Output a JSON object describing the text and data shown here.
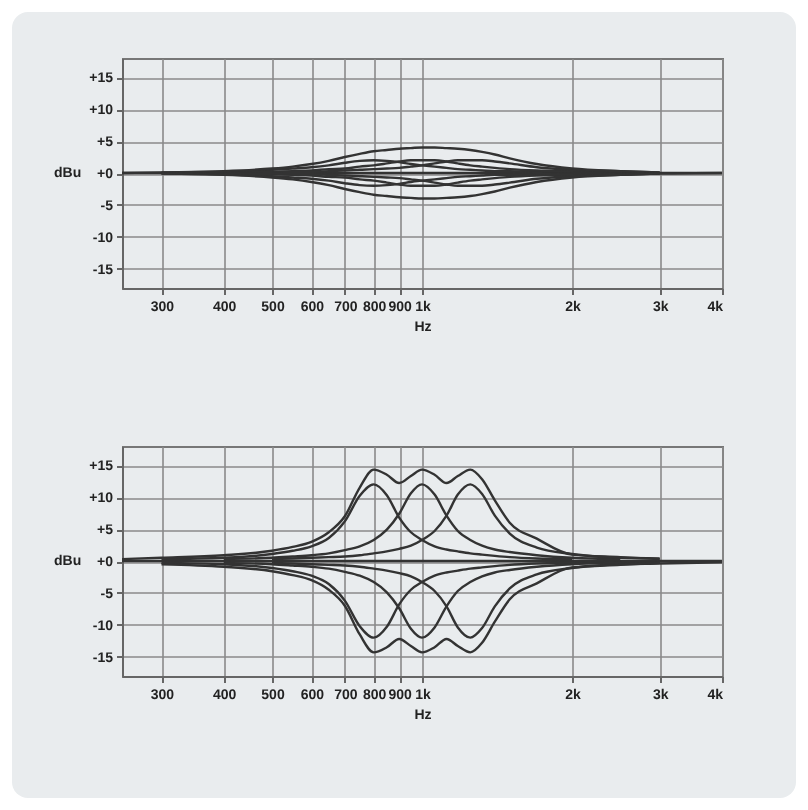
{
  "chart_data": [
    {
      "type": "line",
      "xlabel": "Hz",
      "ylabel": "dBu",
      "log": "x",
      "grid": true,
      "xlim": [
        250,
        4000
      ],
      "ylim": [
        -18,
        18
      ],
      "xticks": [
        {
          "value": 300,
          "label": "300"
        },
        {
          "value": 400,
          "label": "400"
        },
        {
          "value": 500,
          "label": "500"
        },
        {
          "value": 600,
          "label": "600"
        },
        {
          "value": 700,
          "label": "700"
        },
        {
          "value": 800,
          "label": "800"
        },
        {
          "value": 900,
          "label": "900"
        },
        {
          "value": 1000,
          "label": "1k"
        },
        {
          "value": 2000,
          "label": "2k"
        },
        {
          "value": 3000,
          "label": "3k"
        },
        {
          "value": 4000,
          "label": "4k"
        }
      ],
      "yticks": [
        {
          "value": 15,
          "label": "+15"
        },
        {
          "value": 10,
          "label": "+10"
        },
        {
          "value": 5,
          "label": "+5"
        },
        {
          "value": 0,
          "label": "+0"
        },
        {
          "value": -5,
          "label": "-5"
        },
        {
          "value": -10,
          "label": "-10"
        },
        {
          "value": -15,
          "label": "-15"
        }
      ],
      "series": [
        {
          "color": "#333333",
          "x": [
            250,
            4000
          ],
          "values": [
            0,
            0
          ]
        },
        {
          "color": "#333333",
          "x": [
            300,
            400,
            500,
            550,
            600,
            650,
            700,
            750,
            800,
            850,
            900,
            950,
            1000,
            1060,
            1120,
            1180,
            1250,
            1320,
            1400,
            1500,
            1700,
            2000
          ],
          "values": [
            0.1,
            0.2,
            0.5,
            0.7,
            0.9,
            1.2,
            1.6,
            1.9,
            2,
            1.9,
            1.7,
            1.4,
            1.2,
            1,
            0.8,
            0.6,
            0.5,
            0.4,
            0.3,
            0.3,
            0.2,
            0.1
          ]
        },
        {
          "color": "#333333",
          "x": [
            400,
            500,
            550,
            600,
            650,
            700,
            750,
            800,
            850,
            900,
            950,
            1000,
            1060,
            1120,
            1180,
            1250,
            1320,
            1400,
            1500,
            1700,
            2000,
            2500
          ],
          "values": [
            0.1,
            0.2,
            0.3,
            0.4,
            0.6,
            0.7,
            1,
            1.2,
            1.5,
            1.8,
            2,
            2,
            2,
            1.8,
            1.5,
            1.2,
            1,
            0.8,
            0.6,
            0.4,
            0.3,
            0.2
          ]
        },
        {
          "color": "#333333",
          "x": [
            500,
            550,
            600,
            650,
            700,
            750,
            800,
            850,
            900,
            950,
            1000,
            1060,
            1120,
            1180,
            1250,
            1320,
            1400,
            1500,
            1700,
            2000,
            2500,
            3000
          ],
          "values": [
            0.1,
            0.2,
            0.2,
            0.3,
            0.4,
            0.5,
            0.6,
            0.7,
            0.8,
            1,
            1.2,
            1.5,
            1.8,
            2,
            2,
            2,
            1.8,
            1.5,
            0.9,
            0.5,
            0.3,
            0.1
          ]
        },
        {
          "color": "#333333",
          "x": [
            250,
            300,
            400,
            500,
            550,
            600,
            650,
            700,
            750,
            800,
            850,
            900,
            950,
            1000,
            1060,
            1120,
            1180,
            1250,
            1320,
            1400,
            1500,
            1700,
            2000,
            2500,
            3000
          ],
          "values": [
            0,
            0.1,
            0.3,
            0.7,
            1,
            1.4,
            1.9,
            2.5,
            3,
            3.4,
            3.6,
            3.8,
            3.9,
            4,
            4,
            3.9,
            3.8,
            3.6,
            3.3,
            2.9,
            2.3,
            1.4,
            0.7,
            0.3,
            0.1
          ]
        },
        {
          "color": "#333333",
          "x": [
            300,
            400,
            500,
            550,
            600,
            650,
            700,
            750,
            800,
            850,
            900,
            950,
            1000,
            1060,
            1120,
            1180,
            1250,
            1320,
            1400,
            1500,
            1700,
            2000,
            2500
          ],
          "values": [
            -0.1,
            -0.2,
            -0.5,
            -0.7,
            -0.9,
            -1.2,
            -1.6,
            -1.9,
            -2,
            -1.9,
            -1.7,
            -1.4,
            -1.2,
            -1,
            -0.8,
            -0.6,
            -0.5,
            -0.4,
            -0.3,
            -0.3,
            -0.2,
            -0.1,
            -0.1
          ]
        },
        {
          "color": "#333333",
          "x": [
            400,
            500,
            550,
            600,
            650,
            700,
            750,
            800,
            850,
            900,
            950,
            1000,
            1060,
            1120,
            1180,
            1250,
            1320,
            1400,
            1500,
            1700,
            2000,
            2500,
            3000
          ],
          "values": [
            -0.1,
            -0.2,
            -0.3,
            -0.4,
            -0.6,
            -0.7,
            -1,
            -1.2,
            -1.5,
            -1.8,
            -2,
            -2,
            -2,
            -1.8,
            -1.5,
            -1.2,
            -1,
            -0.8,
            -0.6,
            -0.4,
            -0.3,
            -0.2,
            -0.1
          ]
        },
        {
          "color": "#333333",
          "x": [
            500,
            550,
            600,
            650,
            700,
            750,
            800,
            850,
            900,
            950,
            1000,
            1060,
            1120,
            1180,
            1250,
            1320,
            1400,
            1500,
            1700,
            2000,
            2500,
            3000,
            4000
          ],
          "values": [
            -0.1,
            -0.2,
            -0.2,
            -0.3,
            -0.4,
            -0.5,
            -0.6,
            -0.7,
            -0.8,
            -1,
            -1.2,
            -1.5,
            -1.8,
            -2,
            -2,
            -2,
            -1.8,
            -1.5,
            -0.9,
            -0.5,
            -0.3,
            -0.1,
            0
          ]
        },
        {
          "color": "#333333",
          "x": [
            300,
            400,
            500,
            550,
            600,
            650,
            700,
            750,
            800,
            850,
            900,
            950,
            1000,
            1060,
            1120,
            1180,
            1250,
            1320,
            1400,
            1500,
            1700,
            2000,
            2500,
            3000
          ],
          "values": [
            -0.1,
            -0.3,
            -0.7,
            -1,
            -1.4,
            -1.9,
            -2.5,
            -3,
            -3.4,
            -3.6,
            -3.8,
            -3.9,
            -4,
            -4,
            -3.9,
            -3.8,
            -3.6,
            -3.3,
            -2.9,
            -2.3,
            -1.4,
            -0.7,
            -0.3,
            -0.1
          ]
        }
      ]
    },
    {
      "type": "line",
      "xlabel": "Hz",
      "ylabel": "dBu",
      "log": "x",
      "grid": true,
      "xlim": [
        250,
        4000
      ],
      "ylim": [
        -18,
        18
      ],
      "xticks": [
        {
          "value": 300,
          "label": "300"
        },
        {
          "value": 400,
          "label": "400"
        },
        {
          "value": 500,
          "label": "500"
        },
        {
          "value": 600,
          "label": "600"
        },
        {
          "value": 700,
          "label": "700"
        },
        {
          "value": 800,
          "label": "800"
        },
        {
          "value": 900,
          "label": "900"
        },
        {
          "value": 1000,
          "label": "1k"
        },
        {
          "value": 2000,
          "label": "2k"
        },
        {
          "value": 3000,
          "label": "3k"
        },
        {
          "value": 4000,
          "label": "4k"
        }
      ],
      "yticks": [
        {
          "value": 15,
          "label": "+15"
        },
        {
          "value": 10,
          "label": "+10"
        },
        {
          "value": 5,
          "label": "+5"
        },
        {
          "value": 0,
          "label": "+0"
        },
        {
          "value": -5,
          "label": "-5"
        },
        {
          "value": -10,
          "label": "-10"
        },
        {
          "value": -15,
          "label": "-15"
        }
      ],
      "series": [
        {
          "color": "#333333",
          "x": [
            250,
            4000
          ],
          "values": [
            0,
            0
          ]
        },
        {
          "color": "#333333",
          "x": [
            300,
            400,
            500,
            550,
            600,
            650,
            700,
            750,
            800,
            850,
            900,
            950,
            1000,
            1060,
            1120,
            1180,
            1250,
            1320,
            1400,
            1500,
            1700,
            2000
          ],
          "values": [
            0.3,
            0.5,
            1.1,
            1.6,
            2.3,
            3.6,
            6.2,
            10.2,
            12,
            10.3,
            6.8,
            4.5,
            3.3,
            2.3,
            1.8,
            1.5,
            1.2,
            1,
            0.8,
            0.6,
            0.4,
            0.3
          ]
        },
        {
          "color": "#333333",
          "x": [
            400,
            500,
            550,
            600,
            650,
            700,
            750,
            800,
            850,
            900,
            950,
            1000,
            1060,
            1120,
            1180,
            1250,
            1320,
            1400,
            1500,
            1700,
            2000,
            2500
          ],
          "values": [
            0.3,
            0.5,
            0.7,
            0.9,
            1.2,
            1.7,
            2.3,
            3.3,
            4.9,
            7.4,
            10.6,
            12,
            10.4,
            7.1,
            4.7,
            3.3,
            2.4,
            1.8,
            1.4,
            0.9,
            0.5,
            0.3
          ]
        },
        {
          "color": "#333333",
          "x": [
            500,
            550,
            600,
            650,
            700,
            750,
            800,
            850,
            900,
            950,
            1000,
            1060,
            1120,
            1180,
            1250,
            1320,
            1400,
            1500,
            1700,
            2000,
            2500,
            3000
          ],
          "values": [
            0.3,
            0.4,
            0.5,
            0.6,
            0.7,
            0.9,
            1.2,
            1.5,
            1.9,
            2.4,
            3.3,
            4.7,
            7.1,
            10.4,
            12,
            10.5,
            7.1,
            4.3,
            2.1,
            1.1,
            0.5,
            0.4
          ]
        },
        {
          "color": "#333333",
          "x": [
            250,
            300,
            400,
            500,
            550,
            600,
            650,
            700,
            750,
            800,
            850,
            900,
            950,
            1000,
            1060,
            1120,
            1180,
            1250,
            1320,
            1400,
            1500,
            1700,
            2000,
            2500,
            3000
          ],
          "values": [
            0.3,
            0.5,
            0.9,
            1.6,
            2.2,
            3,
            4.5,
            7,
            11.5,
            14.3,
            13.5,
            12.2,
            13.3,
            14.3,
            13.5,
            12.2,
            13.3,
            14.3,
            12.8,
            9.5,
            6,
            3.5,
            1,
            0.6,
            0.3
          ]
        },
        {
          "color": "#333333",
          "x": [
            300,
            400,
            500,
            550,
            600,
            650,
            700,
            750,
            800,
            850,
            900,
            950,
            1000,
            1060,
            1120,
            1180,
            1250,
            1320,
            1400,
            1500,
            1700,
            2000,
            2500
          ],
          "values": [
            -0.3,
            -0.5,
            -1.1,
            -1.6,
            -2.3,
            -3.6,
            -6.2,
            -10.2,
            -12,
            -10.3,
            -6.8,
            -4.5,
            -3.3,
            -2.3,
            -1.8,
            -1.5,
            -1.2,
            -1,
            -0.8,
            -0.6,
            -0.4,
            -0.3,
            -0.2
          ]
        },
        {
          "color": "#333333",
          "x": [
            400,
            500,
            550,
            600,
            650,
            700,
            750,
            800,
            850,
            900,
            950,
            1000,
            1060,
            1120,
            1180,
            1250,
            1320,
            1400,
            1500,
            1700,
            2000,
            2500,
            3000
          ],
          "values": [
            -0.3,
            -0.5,
            -0.7,
            -0.9,
            -1.2,
            -1.7,
            -2.3,
            -3.3,
            -4.9,
            -7.4,
            -10.6,
            -12,
            -10.4,
            -7.1,
            -4.7,
            -3.3,
            -2.4,
            -1.8,
            -1.4,
            -0.9,
            -0.5,
            -0.3,
            -0.2
          ]
        },
        {
          "color": "#333333",
          "x": [
            500,
            550,
            600,
            650,
            700,
            750,
            800,
            850,
            900,
            950,
            1000,
            1060,
            1120,
            1180,
            1250,
            1320,
            1400,
            1500,
            1700,
            2000,
            2500,
            3000,
            4000
          ],
          "values": [
            -0.3,
            -0.4,
            -0.5,
            -0.6,
            -0.7,
            -0.9,
            -1.2,
            -1.5,
            -1.9,
            -2.4,
            -3.3,
            -4.7,
            -7.1,
            -10.4,
            -12,
            -10.5,
            -7.1,
            -4.3,
            -2.1,
            -1.1,
            -0.5,
            -0.4,
            -0.2
          ]
        },
        {
          "color": "#333333",
          "x": [
            300,
            400,
            500,
            550,
            600,
            650,
            700,
            750,
            800,
            850,
            900,
            950,
            1000,
            1060,
            1120,
            1180,
            1250,
            1320,
            1400,
            1500,
            1700,
            2000,
            2500,
            3000
          ],
          "values": [
            -0.5,
            -0.9,
            -1.6,
            -2.2,
            -3,
            -4.5,
            -7,
            -11.5,
            -14.3,
            -13.5,
            -12.2,
            -13.3,
            -14.3,
            -13.5,
            -12.2,
            -13.3,
            -14.3,
            -12.8,
            -9.5,
            -6,
            -3.5,
            -1,
            -0.6,
            -0.3
          ]
        }
      ]
    }
  ]
}
